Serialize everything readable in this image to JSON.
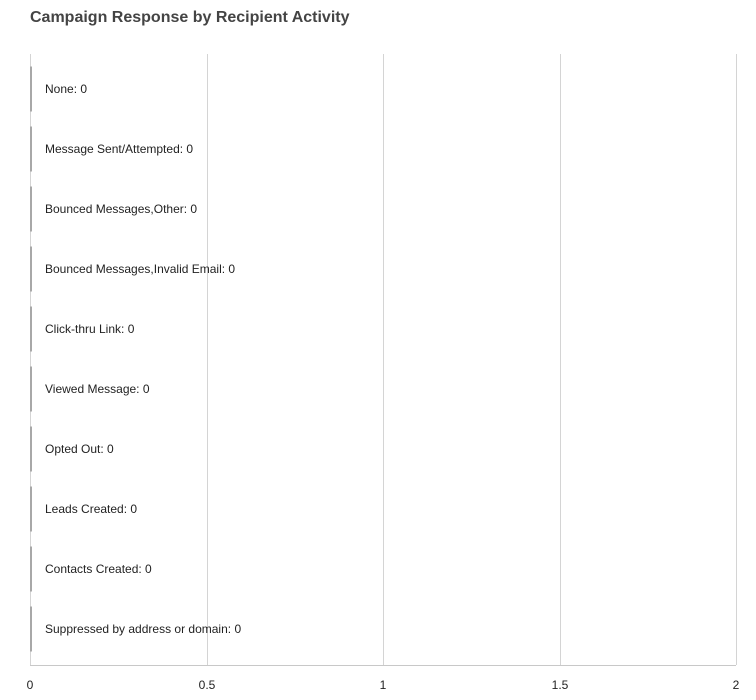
{
  "chart_data": {
    "type": "bar",
    "orientation": "horizontal",
    "title": "Campaign Response by Recipient Activity",
    "xlabel": "",
    "ylabel": "",
    "categories": [
      "None",
      "Message Sent/Attempted",
      "Bounced Messages,Other",
      "Bounced Messages,Invalid Email",
      "Click-thru Link",
      "Viewed Message",
      "Opted Out",
      "Leads Created",
      "Contacts Created",
      "Suppressed by address or domain"
    ],
    "values": [
      0,
      0,
      0,
      0,
      0,
      0,
      0,
      0,
      0,
      0
    ],
    "xlim": [
      0,
      2
    ],
    "x_ticks": [
      "0",
      "0.5",
      "1",
      "1.5",
      "2"
    ],
    "grid": true,
    "legend": "none",
    "colors": {
      "title": "#444444",
      "bar": "#a8a8a8",
      "grid": "#d4d4d4",
      "text": "#222222"
    }
  }
}
